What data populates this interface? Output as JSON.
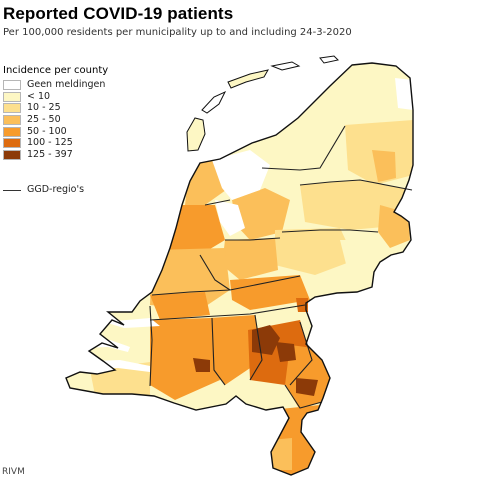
{
  "header": {
    "title": "Reported COVID-19 patients",
    "subtitle": "Per 100,000 residents per municipality up to and including 24-3-2020"
  },
  "legend": {
    "title": "Incidence per county",
    "items": [
      {
        "label": "Geen meldingen",
        "color": "#ffffff"
      },
      {
        "label": "< 10",
        "color": "#fdf7c4"
      },
      {
        "label": "10 - 25",
        "color": "#fde08e"
      },
      {
        "label": "25 - 50",
        "color": "#fbbf5a"
      },
      {
        "label": "50 - 100",
        "color": "#f79b2c"
      },
      {
        "label": "100 - 125",
        "color": "#dd6b0f"
      },
      {
        "label": "125 - 397",
        "color": "#8c3a08"
      }
    ],
    "ggd_label": "GGD-regio's"
  },
  "source": "RIVM",
  "map": {
    "region": "Netherlands",
    "border_color": "#111111",
    "municipality_border_color": "#bdbdbd"
  }
}
